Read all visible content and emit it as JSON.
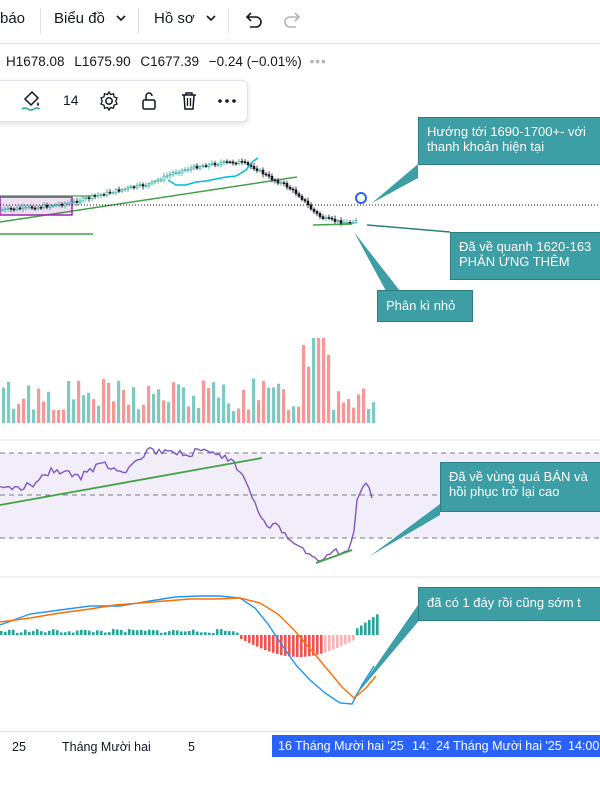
{
  "topbar": {
    "alert_label": "báo",
    "chart_menu_label": "Biểu đồ",
    "profile_menu_label": "Hồ sơ"
  },
  "ohlc": {
    "high": "H1678.08",
    "low": "L1675.90",
    "close": "C1677.39",
    "change": "−0.24 (−0.01%)"
  },
  "drawing_toolbar": {
    "line_width": "14"
  },
  "annotations": {
    "target": {
      "line1": "Hướng tới 1690-1700+- với",
      "line2": "thanh khoản hiện tại"
    },
    "support": {
      "line1": "Đã về quanh 1620-163",
      "line2": "PHẢN ỨNG THÊM"
    },
    "divergence": {
      "line1": "Phân kì nhỏ"
    },
    "oversold": {
      "line1": "Đã về vùng quá BÁN và",
      "line2": "hồi phục trở lại cao"
    },
    "bottom": {
      "line1": "đã có 1 đáy rồi cũng sớm t"
    }
  },
  "xaxis": {
    "labels": [
      "25",
      "Tháng Mười hai",
      "5"
    ],
    "highlight_1": "16 Tháng Mười hai '25",
    "highlight_mid": "14:",
    "highlight_2": "24 Tháng Mười hai '25",
    "highlight_end": "14:00"
  },
  "colors": {
    "up": "#26a69a",
    "down": "#ef5350",
    "callout": "#3e9ea5",
    "trend": "#43a047",
    "rsi": "#7e57c2",
    "macd": "#2196f3",
    "signal": "#ff6d00",
    "axis_highlight": "#2962ff"
  }
}
